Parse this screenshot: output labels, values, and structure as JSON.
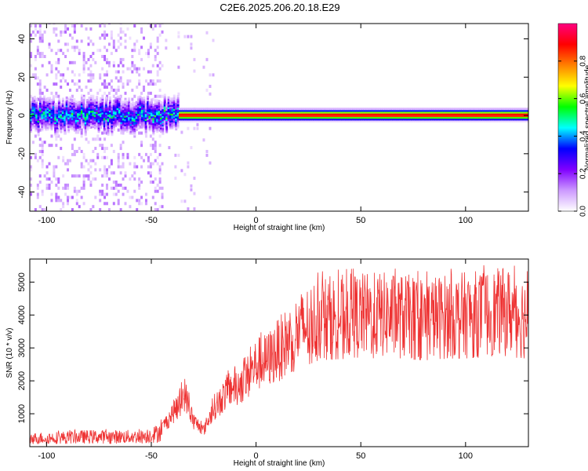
{
  "title": "C2E6.2025.206.20.18.E29",
  "chart_data": [
    {
      "type": "heatmap",
      "xlabel": "Height of straight line (km)",
      "ylabel": "Frequency (Hz)",
      "xlim": [
        -108,
        130
      ],
      "ylim": [
        -50,
        48
      ],
      "xticks": [
        -100,
        -50,
        0,
        50,
        100
      ],
      "yticks": [
        -40,
        -20,
        0,
        20,
        40
      ],
      "colorbar": {
        "label": "Normalized spectral amplitude",
        "range": [
          0,
          1
        ],
        "ticks": [
          "0.0",
          "0.2",
          "0.4",
          "0.6",
          "0.8"
        ],
        "stops": [
          "#ffffff",
          "#cc99ff",
          "#8000ff",
          "#0000ff",
          "#00ffff",
          "#00ff00",
          "#ffff00",
          "#ff8000",
          "#ff0000",
          "#ff0080"
        ]
      },
      "ridge": {
        "frequency_hz": 0,
        "noisy_region_x": [
          -108,
          -45
        ],
        "smooth_region_x": [
          -20,
          130
        ]
      }
    },
    {
      "type": "line",
      "xlabel": "Height of straight line (km)",
      "ylabel": "SNR (10 * v/v)",
      "xlim": [
        -108,
        130
      ],
      "ylim": [
        0,
        5700
      ],
      "xticks": [
        -100,
        -50,
        0,
        50,
        100
      ],
      "yticks": [
        1000,
        2000,
        3000,
        4000,
        5000
      ],
      "series": [
        {
          "color": "#ee3333",
          "envelope": [
            {
              "x": -108,
              "y": 250
            },
            {
              "x": -80,
              "y": 300
            },
            {
              "x": -55,
              "y": 300
            },
            {
              "x": -47,
              "y": 400
            },
            {
              "x": -40,
              "y": 1000
            },
            {
              "x": -34,
              "y": 1600
            },
            {
              "x": -30,
              "y": 800
            },
            {
              "x": -25,
              "y": 500
            },
            {
              "x": -20,
              "y": 1200
            },
            {
              "x": -12,
              "y": 1800
            },
            {
              "x": -5,
              "y": 2000
            },
            {
              "x": 0,
              "y": 2500
            },
            {
              "x": 5,
              "y": 2600
            },
            {
              "x": 10,
              "y": 2900
            },
            {
              "x": 20,
              "y": 3500
            },
            {
              "x": 30,
              "y": 3900
            },
            {
              "x": 40,
              "y": 3950
            },
            {
              "x": 60,
              "y": 4000
            },
            {
              "x": 80,
              "y": 3900
            },
            {
              "x": 100,
              "y": 4000
            },
            {
              "x": 120,
              "y": 4100
            },
            {
              "x": 130,
              "y": 3900
            }
          ]
        }
      ]
    }
  ]
}
